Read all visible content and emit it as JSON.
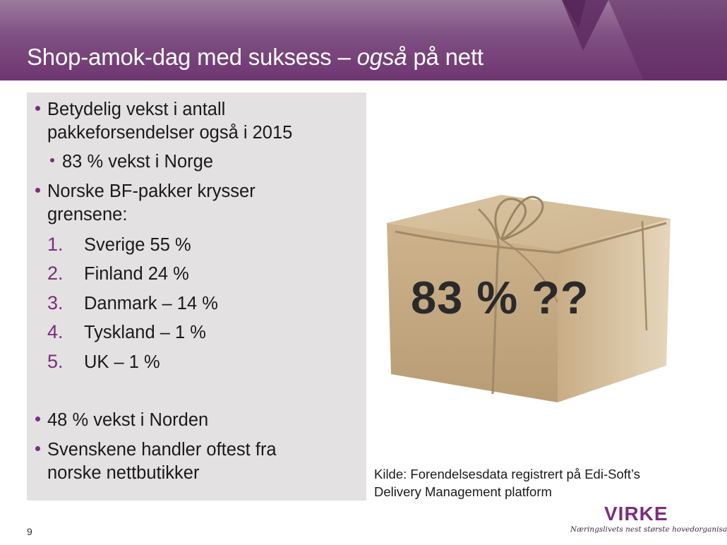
{
  "slide": {
    "title_main": "Shop-amok-dag med suksess – ",
    "title_italic": "også",
    "title_tail": " på nett",
    "page_number": "9"
  },
  "bullets": {
    "b1_line1": "Betydelig vekst i antall",
    "b1_line2": "pakkeforsendelser også i 2015",
    "b1_sub": "83 % vekst i Norge",
    "b2_line1": "Norske BF-pakker krysser",
    "b2_line2": "grensene:",
    "list": [
      {
        "n": "1.",
        "text": "Sverige 55 %"
      },
      {
        "n": "2.",
        "text": "Finland 24 %"
      },
      {
        "n": "3.",
        "text": "Danmark – 14 %"
      },
      {
        "n": "4.",
        "text": "Tyskland – 1 %"
      },
      {
        "n": "5.",
        "text": "UK – 1 %"
      }
    ],
    "b3": "48 % vekst i Norden",
    "b4_line1": "Svenskene handler oftest fra",
    "b4_line2": "norske nettbutikker"
  },
  "image": {
    "overlay_text": "83 % ??",
    "icon": "parcel-icon"
  },
  "source": {
    "line1": "Kilde: Forendelsesdata registrert på Edi-Soft’s",
    "line2": "Delivery Management platform"
  },
  "logo": {
    "name": "VIRKE",
    "tagline": "Næringslivets nest største hovedorganisasjon"
  },
  "colors": {
    "header": "#6e3672",
    "accent": "#7a2e7d",
    "panel": "#e4e1e2"
  }
}
